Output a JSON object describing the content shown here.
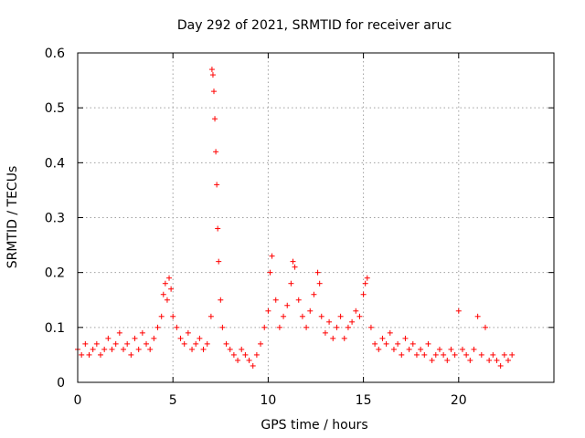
{
  "chart_data": {
    "type": "scatter",
    "title": "Day 292 of 2021, SRMTID for receiver aruc",
    "xlabel": "GPS time / hours",
    "ylabel": "SRMTID / TECUs",
    "xlim": [
      0,
      25
    ],
    "ylim": [
      0,
      0.6
    ],
    "xticks": [
      0,
      5,
      10,
      15,
      20
    ],
    "xtick_labels": [
      "0",
      "5",
      "10",
      "15",
      "20"
    ],
    "yticks": [
      0,
      0.1,
      0.2,
      0.3,
      0.4,
      0.5,
      0.6
    ],
    "ytick_labels": [
      "0",
      "0.1",
      "0.2",
      "0.3",
      "0.4",
      "0.5",
      "0.6"
    ],
    "grid": true,
    "marker": "+",
    "color": "#ff0000",
    "series": [
      {
        "name": "SRMTID",
        "x": [
          0.0,
          0.2,
          0.4,
          0.6,
          0.8,
          1.0,
          1.2,
          1.4,
          1.6,
          1.8,
          2.0,
          2.2,
          2.4,
          2.6,
          2.8,
          3.0,
          3.2,
          3.4,
          3.6,
          3.8,
          4.0,
          4.2,
          4.4,
          4.5,
          4.6,
          4.7,
          4.8,
          4.9,
          5.0,
          5.2,
          5.4,
          5.6,
          5.8,
          6.0,
          6.2,
          6.4,
          6.6,
          6.8,
          7.0,
          7.05,
          7.1,
          7.15,
          7.2,
          7.25,
          7.3,
          7.35,
          7.4,
          7.5,
          7.6,
          7.8,
          8.0,
          8.2,
          8.4,
          8.6,
          8.8,
          9.0,
          9.2,
          9.4,
          9.6,
          9.8,
          10.0,
          10.1,
          10.2,
          10.4,
          10.6,
          10.8,
          11.0,
          11.2,
          11.3,
          11.4,
          11.6,
          11.8,
          12.0,
          12.2,
          12.4,
          12.6,
          12.7,
          12.8,
          13.0,
          13.2,
          13.4,
          13.6,
          13.8,
          14.0,
          14.2,
          14.4,
          14.6,
          14.8,
          15.0,
          15.1,
          15.2,
          15.4,
          15.6,
          15.8,
          16.0,
          16.2,
          16.4,
          16.6,
          16.8,
          17.0,
          17.2,
          17.4,
          17.6,
          17.8,
          18.0,
          18.2,
          18.4,
          18.6,
          18.8,
          19.0,
          19.2,
          19.4,
          19.6,
          19.8,
          20.0,
          20.2,
          20.4,
          20.6,
          20.8,
          21.0,
          21.2,
          21.4,
          21.6,
          21.8,
          22.0,
          22.2,
          22.4,
          22.6,
          22.8
        ],
        "y": [
          0.06,
          0.05,
          0.07,
          0.05,
          0.06,
          0.07,
          0.05,
          0.06,
          0.08,
          0.06,
          0.07,
          0.09,
          0.06,
          0.07,
          0.05,
          0.08,
          0.06,
          0.09,
          0.07,
          0.06,
          0.08,
          0.1,
          0.12,
          0.16,
          0.18,
          0.15,
          0.19,
          0.17,
          0.12,
          0.1,
          0.08,
          0.07,
          0.09,
          0.06,
          0.07,
          0.08,
          0.06,
          0.07,
          0.12,
          0.57,
          0.56,
          0.53,
          0.48,
          0.42,
          0.36,
          0.28,
          0.22,
          0.15,
          0.1,
          0.07,
          0.06,
          0.05,
          0.04,
          0.06,
          0.05,
          0.04,
          0.03,
          0.05,
          0.07,
          0.1,
          0.13,
          0.2,
          0.23,
          0.15,
          0.1,
          0.12,
          0.14,
          0.18,
          0.22,
          0.21,
          0.15,
          0.12,
          0.1,
          0.13,
          0.16,
          0.2,
          0.18,
          0.12,
          0.09,
          0.11,
          0.08,
          0.1,
          0.12,
          0.08,
          0.1,
          0.11,
          0.13,
          0.12,
          0.16,
          0.18,
          0.19,
          0.1,
          0.07,
          0.06,
          0.08,
          0.07,
          0.09,
          0.06,
          0.07,
          0.05,
          0.08,
          0.06,
          0.07,
          0.05,
          0.06,
          0.05,
          0.07,
          0.04,
          0.05,
          0.06,
          0.05,
          0.04,
          0.06,
          0.05,
          0.13,
          0.06,
          0.05,
          0.04,
          0.06,
          0.12,
          0.05,
          0.1,
          0.04,
          0.05,
          0.04,
          0.03,
          0.05,
          0.04,
          0.05
        ]
      }
    ]
  }
}
